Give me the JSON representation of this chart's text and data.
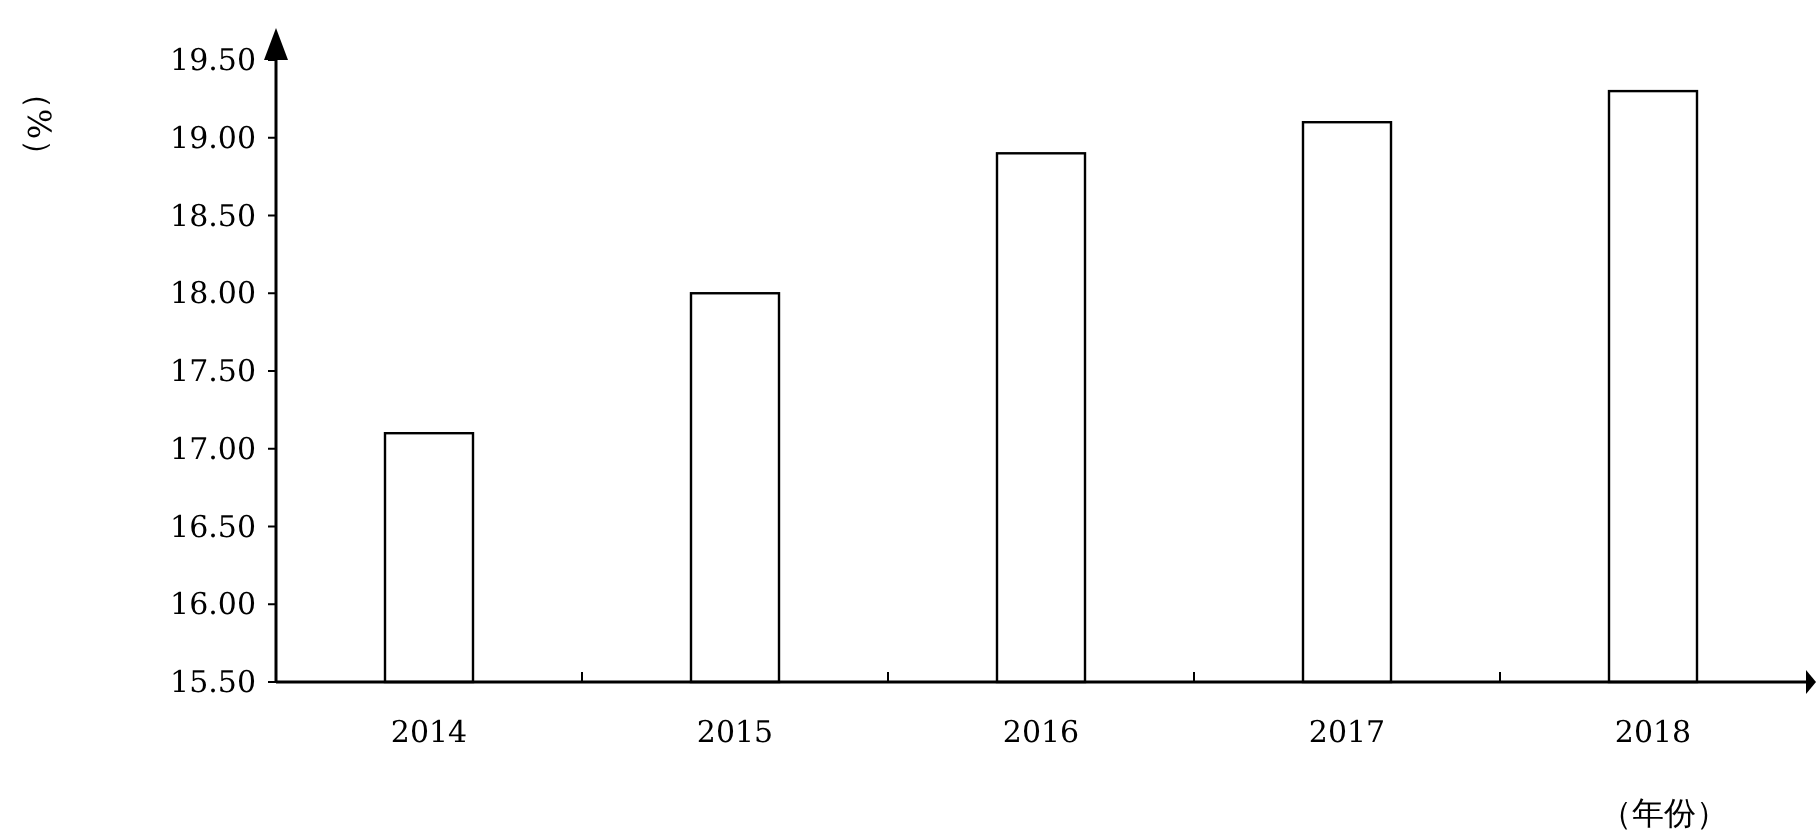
{
  "chart_data": {
    "type": "bar",
    "xlabel": "（年份）",
    "ylabel": "（%）",
    "categories": [
      "2014",
      "2015",
      "2016",
      "2017",
      "2018"
    ],
    "values": [
      17.1,
      18.0,
      18.9,
      19.1,
      19.3
    ],
    "color": "#ffffff",
    "ylim": [
      15.5,
      19.5
    ],
    "yticks": [
      {
        "value": 15.5,
        "label": "15.50"
      },
      {
        "value": 16,
        "label": "16.00"
      },
      {
        "value": 16.5,
        "label": "16.50"
      },
      {
        "value": 17,
        "label": "17.00"
      },
      {
        "value": 17.5,
        "label": "17.50"
      },
      {
        "value": 18,
        "label": "18.00"
      },
      {
        "value": 18.5,
        "label": "18.50"
      },
      {
        "value": 19,
        "label": "19.00"
      },
      {
        "value": 19.5,
        "label": "19.50"
      }
    ],
    "grid": false
  }
}
